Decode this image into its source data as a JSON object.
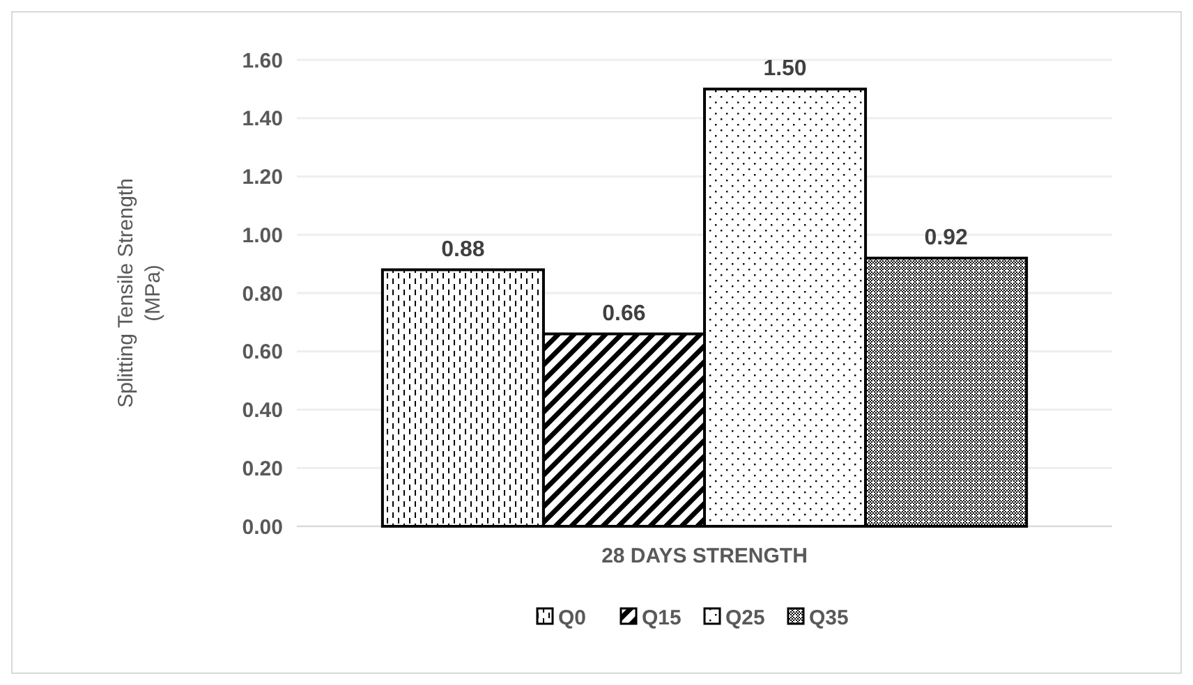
{
  "chart_data": {
    "type": "bar",
    "ylabel": "Splitting Tensile Strength (MPa)",
    "categories": [
      "28 DAYS STRENGTH"
    ],
    "series": [
      {
        "name": "Q0",
        "color": "#000000",
        "values": [
          0.88
        ],
        "value_labels": [
          "0.88"
        ]
      },
      {
        "name": "Q15",
        "color": "#000000",
        "values": [
          0.66
        ],
        "value_labels": [
          "0.66"
        ]
      },
      {
        "name": "Q25",
        "color": "#000000",
        "values": [
          1.5
        ],
        "value_labels": [
          "1.50"
        ]
      },
      {
        "name": "Q35",
        "color": "#000000",
        "values": [
          0.92
        ],
        "value_labels": [
          "0.92"
        ]
      }
    ],
    "ylim": [
      0,
      1.6
    ],
    "yticks": [
      {
        "value": 0,
        "label": "0.00"
      },
      {
        "value": 0.2,
        "label": "0.20"
      },
      {
        "value": 0.4,
        "label": "0.40"
      },
      {
        "value": 0.6,
        "label": "0.60"
      },
      {
        "value": 0.8,
        "label": "0.80"
      },
      {
        "value": 1,
        "label": "1.00"
      },
      {
        "value": 1.2,
        "label": "1.20"
      },
      {
        "value": 1.4,
        "label": "1.40"
      },
      {
        "value": 1.6,
        "label": "1.60"
      }
    ],
    "grid": "y",
    "legend": "bottom"
  }
}
